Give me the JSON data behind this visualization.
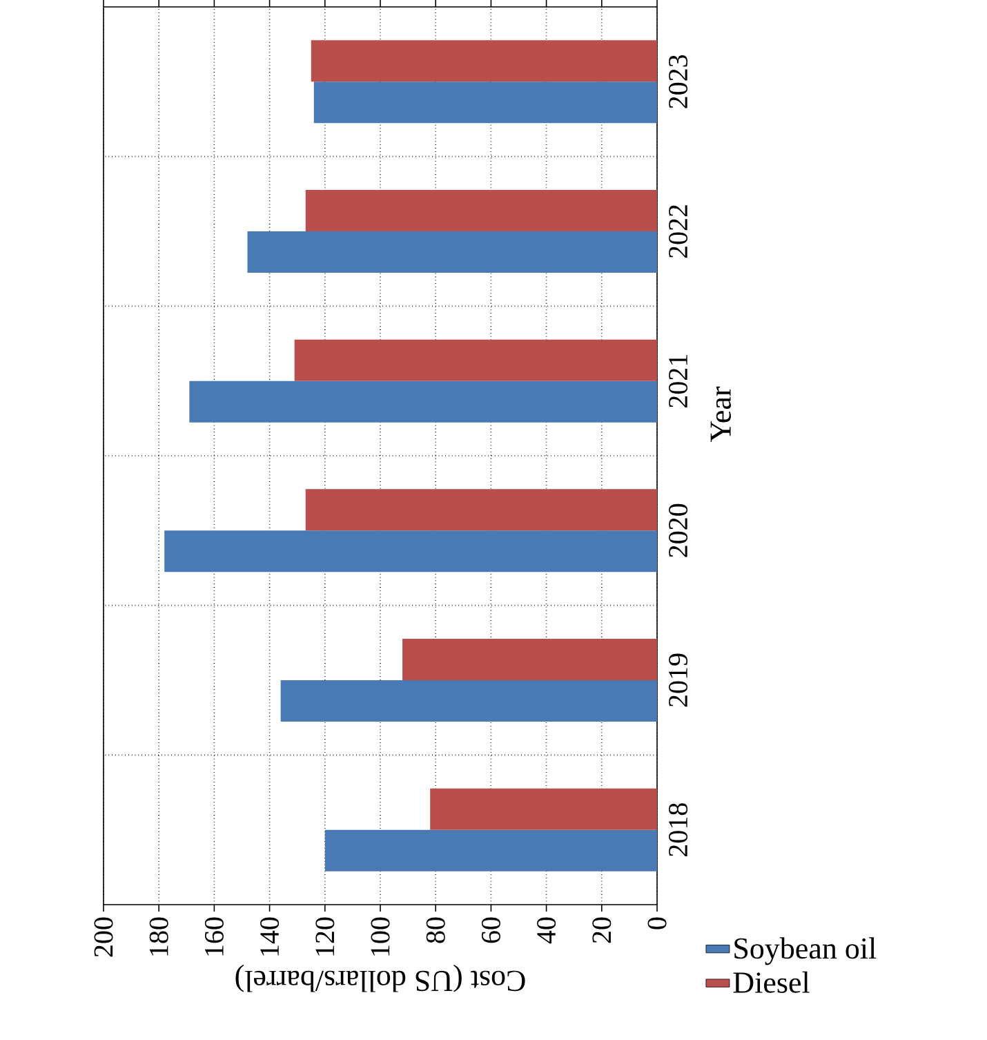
{
  "chart_data": {
    "type": "bar",
    "orientation": "horizontal",
    "xlabel": "Cost (US dollars/barrel)",
    "ylabel": "Year",
    "categories": [
      "2023",
      "2022",
      "2021",
      "2020",
      "2019",
      "2018"
    ],
    "series": [
      {
        "name": "Soybean oil",
        "color": "#4a7ab4",
        "values": [
          124,
          148,
          169,
          178,
          136,
          120
        ]
      },
      {
        "name": "Diesel",
        "color": "#b84f4c",
        "values": [
          125,
          127,
          131,
          127,
          92,
          82
        ]
      }
    ],
    "xlim": [
      200,
      0
    ],
    "xticks": [
      200,
      180,
      160,
      140,
      120,
      100,
      80,
      60,
      40,
      20,
      0
    ],
    "grid": true,
    "legend": "bottom right"
  }
}
